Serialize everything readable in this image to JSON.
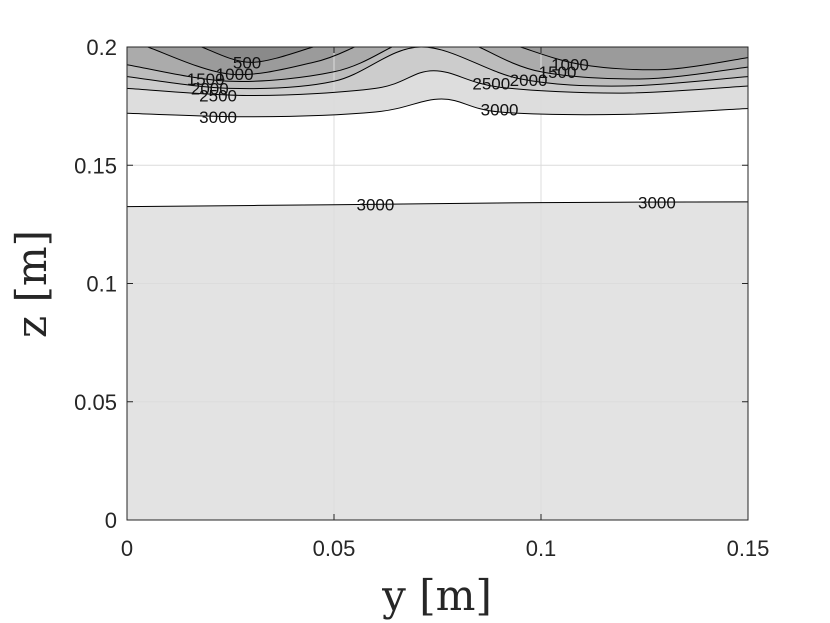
{
  "chart_data": {
    "type": "contour",
    "title": "",
    "xlabel": "y [m]",
    "ylabel": "z [m]",
    "xlim": [
      0,
      0.15
    ],
    "ylim": [
      0,
      0.2
    ],
    "x_ticks": [
      0,
      0.05,
      0.1,
      0.15
    ],
    "x_tick_labels": [
      "0",
      "0.05",
      "0.1",
      "0.15"
    ],
    "y_ticks": [
      0,
      0.05,
      0.1,
      0.15,
      0.2
    ],
    "y_tick_labels": [
      "0",
      "0.05",
      "0.1",
      "0.15",
      "0.2"
    ],
    "grid": true,
    "colormap": "gray",
    "contour_levels": [
      500,
      1000,
      1500,
      2000,
      2500,
      3000
    ],
    "contours": [
      {
        "level": 3000,
        "points": [
          [
            0,
            0.1325
          ],
          [
            0.05,
            0.1333
          ],
          [
            0.1,
            0.1342
          ],
          [
            0.15,
            0.1345
          ]
        ]
      },
      {
        "level": 3000,
        "points": [
          [
            0,
            0.172
          ],
          [
            0.03,
            0.1705
          ],
          [
            0.06,
            0.1725
          ],
          [
            0.076,
            0.178
          ],
          [
            0.09,
            0.1725
          ],
          [
            0.12,
            0.1715
          ],
          [
            0.15,
            0.174
          ]
        ]
      },
      {
        "level": 2500,
        "points": [
          [
            0,
            0.1825
          ],
          [
            0.03,
            0.1795
          ],
          [
            0.06,
            0.1825
          ],
          [
            0.074,
            0.19
          ],
          [
            0.09,
            0.183
          ],
          [
            0.12,
            0.1805
          ],
          [
            0.15,
            0.1835
          ]
        ]
      },
      {
        "level": 2000,
        "points": [
          [
            0,
            0.1875
          ],
          [
            0.025,
            0.1825
          ],
          [
            0.05,
            0.1855
          ],
          [
            0.071,
            0.2
          ],
          [
            0.095,
            0.1865
          ],
          [
            0.12,
            0.1835
          ],
          [
            0.15,
            0.1875
          ]
        ]
      },
      {
        "level": 1500,
        "points": [
          [
            0,
            0.1925
          ],
          [
            0.025,
            0.1855
          ],
          [
            0.05,
            0.1895
          ],
          [
            0.064,
            0.2
          ]
        ]
      },
      {
        "level": 1500,
        "points": [
          [
            0.085,
            0.2
          ],
          [
            0.1,
            0.1895
          ],
          [
            0.125,
            0.1865
          ],
          [
            0.15,
            0.1915
          ]
        ]
      },
      {
        "level": 1000,
        "points": [
          [
            0.005,
            0.2
          ],
          [
            0.025,
            0.1885
          ],
          [
            0.045,
            0.1935
          ],
          [
            0.055,
            0.2
          ]
        ]
      },
      {
        "level": 1000,
        "points": [
          [
            0.095,
            0.2
          ],
          [
            0.11,
            0.1925
          ],
          [
            0.13,
            0.1905
          ],
          [
            0.15,
            0.1955
          ]
        ]
      },
      {
        "level": 500,
        "points": [
          [
            0.018,
            0.2
          ],
          [
            0.03,
            0.1935
          ],
          [
            0.045,
            0.2
          ]
        ]
      }
    ],
    "contour_labels": [
      {
        "text": "500",
        "x": 0.029,
        "y": 0.1935
      },
      {
        "text": "1000",
        "x": 0.026,
        "y": 0.1885
      },
      {
        "text": "1500",
        "x": 0.019,
        "y": 0.1865
      },
      {
        "text": "2000",
        "x": 0.02,
        "y": 0.1825
      },
      {
        "text": "2500",
        "x": 0.022,
        "y": 0.1795
      },
      {
        "text": "3000",
        "x": 0.022,
        "y": 0.1705
      },
      {
        "text": "3000",
        "x": 0.09,
        "y": 0.1735
      },
      {
        "text": "2500",
        "x": 0.088,
        "y": 0.1845
      },
      {
        "text": "2000",
        "x": 0.097,
        "y": 0.186
      },
      {
        "text": "1500",
        "x": 0.104,
        "y": 0.1895
      },
      {
        "text": "1000",
        "x": 0.107,
        "y": 0.1925
      },
      {
        "text": "3000",
        "x": 0.06,
        "y": 0.1333
      },
      {
        "text": "3000",
        "x": 0.128,
        "y": 0.1343
      }
    ]
  }
}
